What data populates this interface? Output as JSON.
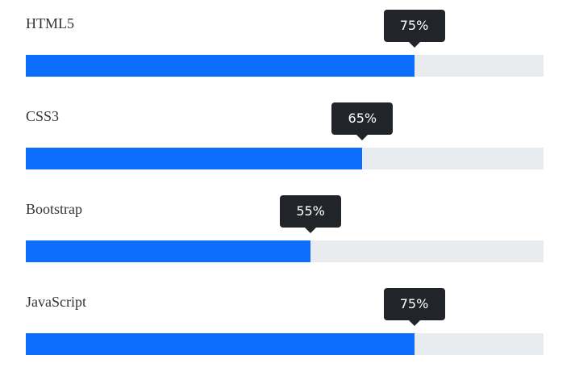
{
  "range": [
    0,
    100
  ],
  "skills": [
    {
      "name": "HTML5",
      "value": 75,
      "value_label": "75%"
    },
    {
      "name": "CSS3",
      "value": 65,
      "value_label": "65%"
    },
    {
      "name": "Bootstrap",
      "value": 55,
      "value_label": "55%"
    },
    {
      "name": "JavaScript",
      "value": 75,
      "value_label": "75%"
    }
  ]
}
